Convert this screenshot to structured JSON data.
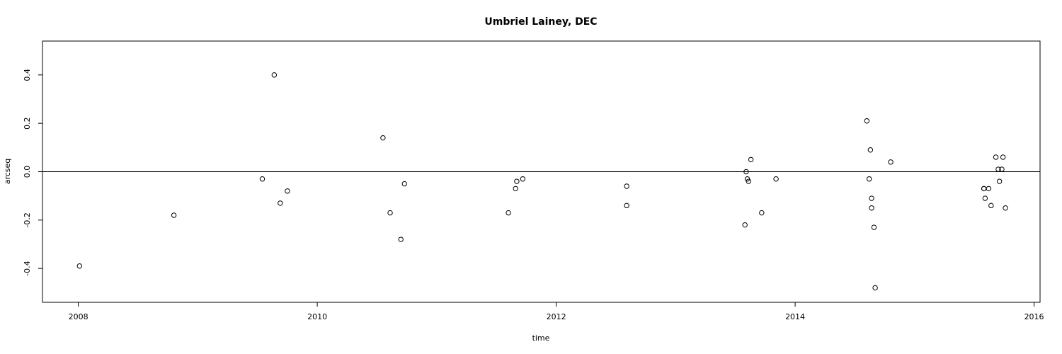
{
  "chart_data": {
    "type": "scatter",
    "title": "Umbriel Lainey, DEC",
    "xlabel": "time",
    "ylabel": "arcseq",
    "xlim": [
      2007.7,
      2016.05
    ],
    "ylim": [
      -0.54,
      0.54
    ],
    "xticks": [
      2008,
      2010,
      2012,
      2014,
      2016
    ],
    "xtick_labels": [
      "2008",
      "2010",
      "2012",
      "2014",
      "2016"
    ],
    "yticks": [
      -0.4,
      -0.2,
      0.0,
      0.2,
      0.4
    ],
    "ytick_labels": [
      "-0.4",
      "-0.2",
      "0.0",
      "0.2",
      "0.4"
    ],
    "reference_line_y": 0,
    "grid": false,
    "points": [
      [
        2008.01,
        -0.39
      ],
      [
        2008.8,
        -0.18
      ],
      [
        2009.54,
        -0.03
      ],
      [
        2009.64,
        0.4
      ],
      [
        2009.69,
        -0.13
      ],
      [
        2009.75,
        -0.08
      ],
      [
        2010.55,
        0.14
      ],
      [
        2010.61,
        -0.17
      ],
      [
        2010.7,
        -0.28
      ],
      [
        2010.73,
        -0.05
      ],
      [
        2011.6,
        -0.17
      ],
      [
        2011.66,
        -0.07
      ],
      [
        2011.67,
        -0.04
      ],
      [
        2011.72,
        -0.03
      ],
      [
        2012.59,
        -0.06
      ],
      [
        2012.59,
        -0.14
      ],
      [
        2013.58,
        -0.22
      ],
      [
        2013.59,
        0.0
      ],
      [
        2013.6,
        -0.03
      ],
      [
        2013.61,
        -0.04
      ],
      [
        2013.63,
        0.05
      ],
      [
        2013.72,
        -0.17
      ],
      [
        2013.84,
        -0.03
      ],
      [
        2014.6,
        0.21
      ],
      [
        2014.62,
        -0.03
      ],
      [
        2014.63,
        0.09
      ],
      [
        2014.64,
        -0.11
      ],
      [
        2014.64,
        -0.15
      ],
      [
        2014.66,
        -0.23
      ],
      [
        2014.67,
        -0.48
      ],
      [
        2014.8,
        0.04
      ],
      [
        2015.58,
        -0.07
      ],
      [
        2015.58,
        -0.07
      ],
      [
        2015.59,
        -0.11
      ],
      [
        2015.62,
        -0.07
      ],
      [
        2015.64,
        -0.14
      ],
      [
        2015.68,
        0.06
      ],
      [
        2015.7,
        0.01
      ],
      [
        2015.71,
        -0.04
      ],
      [
        2015.73,
        0.01
      ],
      [
        2015.74,
        0.06
      ],
      [
        2015.76,
        -0.15
      ]
    ]
  }
}
